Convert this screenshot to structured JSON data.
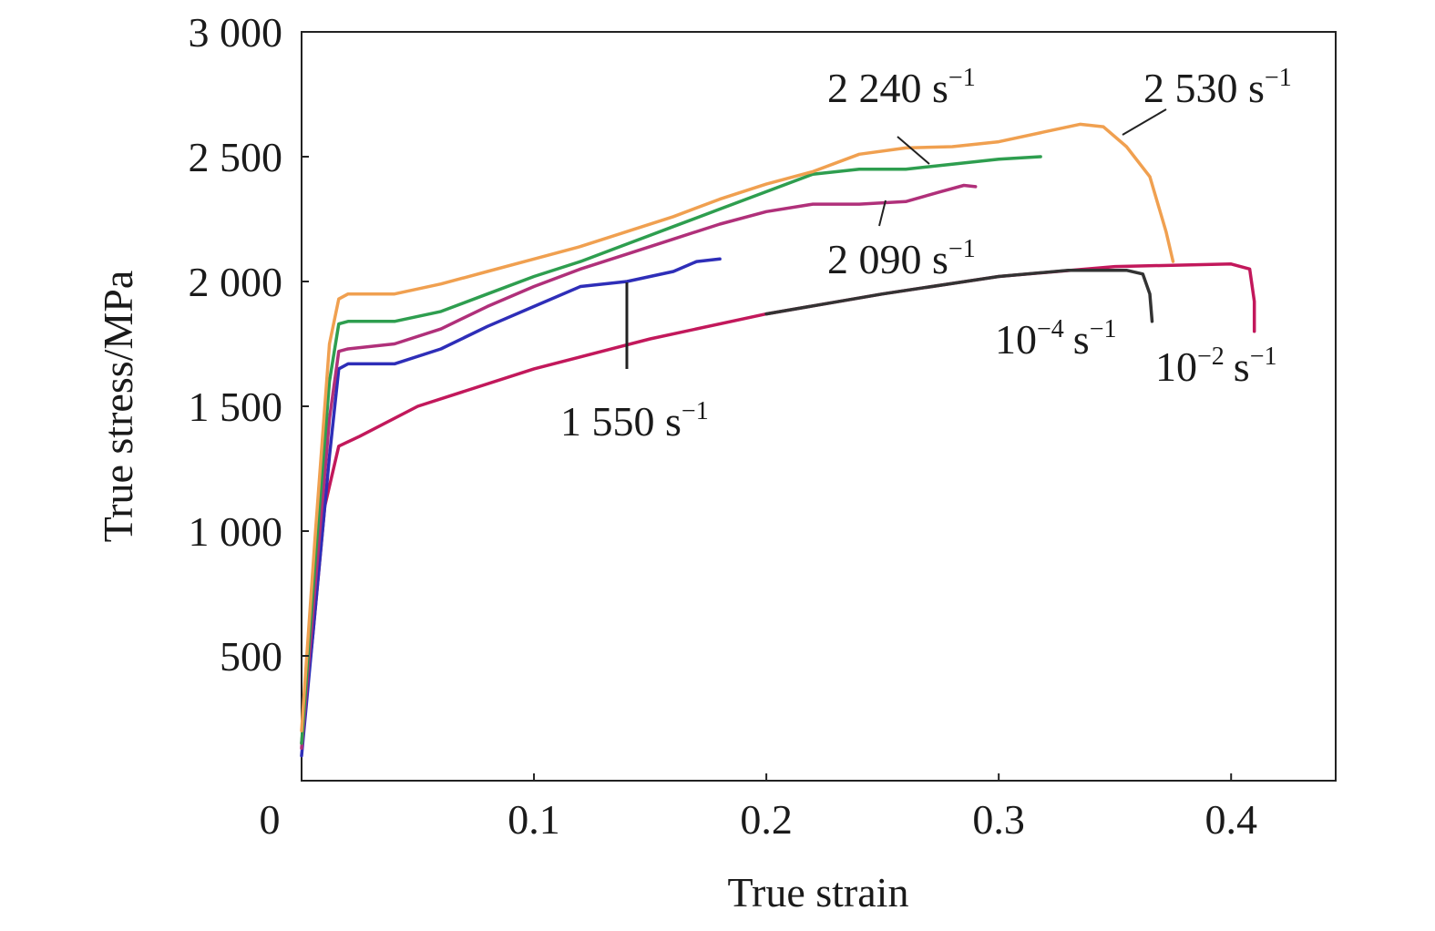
{
  "chart_data": {
    "type": "line",
    "xlabel": "True strain",
    "ylabel": "True stress/MPa",
    "xlim": [
      0,
      0.445
    ],
    "ylim": [
      0,
      3000
    ],
    "x_ticks": [
      {
        "value": 0,
        "label": "0"
      },
      {
        "value": 0.1,
        "label": "0.1"
      },
      {
        "value": 0.2,
        "label": "0.2"
      },
      {
        "value": 0.3,
        "label": "0.3"
      },
      {
        "value": 0.4,
        "label": "0.4"
      }
    ],
    "y_ticks": [
      {
        "value": 500,
        "label": "500"
      },
      {
        "value": 1000,
        "label": "1 000"
      },
      {
        "value": 1500,
        "label": "1 500"
      },
      {
        "value": 2000,
        "label": "2 000"
      },
      {
        "value": 2500,
        "label": "2 500"
      },
      {
        "value": 3000,
        "label": "3 000"
      }
    ],
    "grid": false,
    "series": [
      {
        "name": "10⁻² s⁻¹",
        "color": "#c2185b",
        "points": [
          [
            0,
            150
          ],
          [
            0.005,
            600
          ],
          [
            0.01,
            1100
          ],
          [
            0.016,
            1340
          ],
          [
            0.025,
            1380
          ],
          [
            0.05,
            1500
          ],
          [
            0.1,
            1650
          ],
          [
            0.15,
            1770
          ],
          [
            0.2,
            1870
          ],
          [
            0.25,
            1950
          ],
          [
            0.3,
            2020
          ],
          [
            0.35,
            2060
          ],
          [
            0.4,
            2070
          ],
          [
            0.408,
            2050
          ],
          [
            0.41,
            1920
          ],
          [
            0.41,
            1800
          ]
        ]
      },
      {
        "name": "10⁻⁴ s⁻¹",
        "color": "#333333",
        "points": [
          [
            0.2,
            1870
          ],
          [
            0.25,
            1950
          ],
          [
            0.3,
            2020
          ],
          [
            0.33,
            2045
          ],
          [
            0.355,
            2045
          ],
          [
            0.362,
            2030
          ],
          [
            0.365,
            1950
          ],
          [
            0.366,
            1840
          ]
        ]
      },
      {
        "name": "1 550 s⁻¹",
        "color": "#2e2eb8",
        "points": [
          [
            0,
            100
          ],
          [
            0.006,
            700
          ],
          [
            0.012,
            1300
          ],
          [
            0.016,
            1650
          ],
          [
            0.02,
            1670
          ],
          [
            0.04,
            1670
          ],
          [
            0.06,
            1730
          ],
          [
            0.08,
            1820
          ],
          [
            0.1,
            1900
          ],
          [
            0.12,
            1980
          ],
          [
            0.14,
            2000
          ],
          [
            0.16,
            2040
          ],
          [
            0.17,
            2080
          ],
          [
            0.18,
            2090
          ]
        ]
      },
      {
        "name": "2 090 s⁻¹",
        "color": "#b0307a",
        "points": [
          [
            0,
            130
          ],
          [
            0.006,
            800
          ],
          [
            0.012,
            1450
          ],
          [
            0.016,
            1720
          ],
          [
            0.02,
            1730
          ],
          [
            0.04,
            1750
          ],
          [
            0.06,
            1810
          ],
          [
            0.08,
            1900
          ],
          [
            0.1,
            1980
          ],
          [
            0.12,
            2050
          ],
          [
            0.14,
            2110
          ],
          [
            0.16,
            2170
          ],
          [
            0.18,
            2230
          ],
          [
            0.2,
            2280
          ],
          [
            0.22,
            2310
          ],
          [
            0.24,
            2310
          ],
          [
            0.26,
            2320
          ],
          [
            0.275,
            2360
          ],
          [
            0.285,
            2385
          ],
          [
            0.29,
            2380
          ]
        ]
      },
      {
        "name": "2 240 s⁻¹",
        "color": "#2e9e4f",
        "points": [
          [
            0,
            150
          ],
          [
            0.006,
            900
          ],
          [
            0.012,
            1600
          ],
          [
            0.016,
            1830
          ],
          [
            0.02,
            1840
          ],
          [
            0.04,
            1840
          ],
          [
            0.06,
            1880
          ],
          [
            0.08,
            1950
          ],
          [
            0.1,
            2020
          ],
          [
            0.12,
            2080
          ],
          [
            0.14,
            2150
          ],
          [
            0.16,
            2220
          ],
          [
            0.18,
            2290
          ],
          [
            0.2,
            2360
          ],
          [
            0.22,
            2430
          ],
          [
            0.24,
            2450
          ],
          [
            0.26,
            2450
          ],
          [
            0.28,
            2470
          ],
          [
            0.3,
            2490
          ],
          [
            0.318,
            2500
          ]
        ]
      },
      {
        "name": "2 530 s⁻¹",
        "color": "#f0a050",
        "points": [
          [
            0,
            200
          ],
          [
            0.006,
            1000
          ],
          [
            0.012,
            1750
          ],
          [
            0.016,
            1930
          ],
          [
            0.02,
            1950
          ],
          [
            0.04,
            1950
          ],
          [
            0.06,
            1990
          ],
          [
            0.08,
            2040
          ],
          [
            0.1,
            2090
          ],
          [
            0.12,
            2140
          ],
          [
            0.14,
            2200
          ],
          [
            0.16,
            2260
          ],
          [
            0.18,
            2330
          ],
          [
            0.2,
            2390
          ],
          [
            0.22,
            2440
          ],
          [
            0.24,
            2510
          ],
          [
            0.26,
            2535
          ],
          [
            0.28,
            2540
          ],
          [
            0.3,
            2560
          ],
          [
            0.32,
            2600
          ],
          [
            0.335,
            2630
          ],
          [
            0.345,
            2620
          ],
          [
            0.355,
            2540
          ],
          [
            0.365,
            2420
          ],
          [
            0.372,
            2200
          ],
          [
            0.375,
            2080
          ]
        ]
      }
    ],
    "annotations": [
      {
        "base": "2 240 s",
        "sup": "−1"
      },
      {
        "base": "2 530 s",
        "sup": "−1"
      },
      {
        "base": "2 090 s",
        "sup": "−1"
      },
      {
        "base": "10",
        "sup": "−4",
        "unit": "s",
        "sup2": "−1"
      },
      {
        "base": "10",
        "sup": "−2",
        "unit": "s",
        "sup2": "−1"
      },
      {
        "base": "1 550 s",
        "sup": "−1"
      }
    ]
  }
}
